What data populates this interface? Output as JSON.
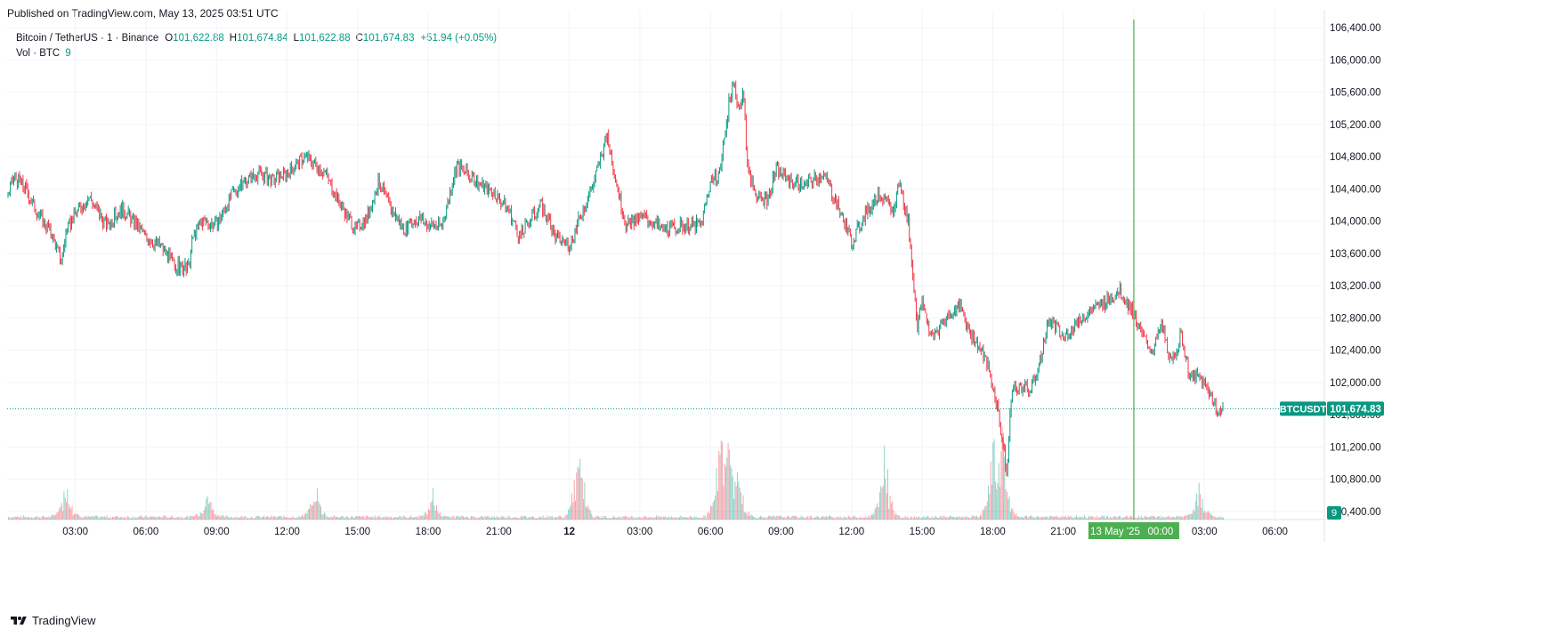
{
  "published": "Published on TradingView.com, May 13, 2025 03:51 UTC",
  "legend": {
    "symbol": "Bitcoin / TetherUS · 1 · Binance",
    "open_label": "O",
    "open": "101,622.88",
    "high_label": "H",
    "high": "101,674.84",
    "low_label": "L",
    "low": "101,622.88",
    "close_label": "C",
    "close": "101,674.83",
    "change": "+51.94 (+0.05%)",
    "vol_label": "Vol · BTC",
    "vol_value": "9"
  },
  "footer": {
    "brand": "TradingView"
  },
  "colors": {
    "up": "#089981",
    "down": "#f23645",
    "crosshair": "#4caf50",
    "grid": "#f0f3fa"
  },
  "chart_data": {
    "type": "line",
    "title": "Bitcoin / TetherUS · 1 · Binance",
    "symbol_tag": "BTCUSDT",
    "last_price": 101674.83,
    "last_price_label": "101,674.83",
    "volume_tag": "9",
    "crosshair_label": {
      "date": "13 May '25",
      "time": "00:00"
    },
    "ylim": [
      100300,
      106500
    ],
    "y_ticks": [
      100400,
      100800,
      101200,
      101600,
      102000,
      102400,
      102800,
      103200,
      103600,
      104000,
      104400,
      104800,
      105200,
      105600,
      106000,
      106400
    ],
    "y_tick_labels": [
      "100,400.00",
      "100,800.00",
      "101,200.00",
      "101,600.00",
      "102,000.00",
      "102,400.00",
      "102,800.00",
      "103,200.00",
      "103,600.00",
      "104,000.00",
      "104,400.00",
      "104,800.00",
      "105,200.00",
      "105,600.00",
      "106,000.00",
      "106,400.00"
    ],
    "x_ticks": [
      "03:00",
      "06:00",
      "09:00",
      "12:00",
      "15:00",
      "18:00",
      "21:00",
      "12",
      "03:00",
      "06:00",
      "09:00",
      "12:00",
      "15:00",
      "18:00",
      "21:00",
      "00:00",
      "03:00",
      "06:00"
    ],
    "x_tick_hours": [
      3,
      6,
      9,
      12,
      15,
      18,
      21,
      24,
      27,
      30,
      33,
      36,
      39,
      42,
      45,
      48,
      51,
      54
    ],
    "x_range_hours": [
      0.1,
      56.1
    ],
    "crosshair_hour": 48,
    "last_bar_hour": 51.8,
    "price_series": {
      "x_hours": [
        0.1,
        0.4,
        0.9,
        1.4,
        2.0,
        2.4,
        2.6,
        3.0,
        3.6,
        4.3,
        5.0,
        5.6,
        6.0,
        6.6,
        7.2,
        7.8,
        8.0,
        8.4,
        9.0,
        9.6,
        10.2,
        10.8,
        11.4,
        12.0,
        12.8,
        13.6,
        14.2,
        14.9,
        15.4,
        15.9,
        16.4,
        17.0,
        17.6,
        18.0,
        18.6,
        19.2,
        20.0,
        20.8,
        21.4,
        21.9,
        22.4,
        22.8,
        23.4,
        24.0,
        24.4,
        24.6,
        25.0,
        25.6,
        26.4,
        27.2,
        28.0,
        29.0,
        29.6,
        30.0,
        30.4,
        30.8,
        31.0,
        31.2,
        31.4,
        31.6,
        32.0,
        32.4,
        32.8,
        33.4,
        34.0,
        34.8,
        35.4,
        35.6,
        36.0,
        36.6,
        37.2,
        37.8,
        38.0,
        38.4,
        38.8,
        39.0,
        39.4,
        40.0,
        40.6,
        41.0,
        41.4,
        41.8,
        42.2,
        42.4,
        42.6,
        42.8,
        43.2,
        43.6,
        44.0,
        44.4,
        45.0,
        45.6,
        46.2,
        46.8,
        47.4,
        48.0,
        48.4,
        48.8,
        49.2,
        49.6,
        50.0,
        50.4,
        50.8,
        51.2,
        51.6,
        51.8
      ],
      "prices": [
        104300,
        104550,
        104400,
        104100,
        103850,
        103500,
        103850,
        104100,
        104300,
        103950,
        104150,
        103950,
        103800,
        103700,
        103450,
        103400,
        103800,
        104000,
        103950,
        104300,
        104500,
        104600,
        104500,
        104600,
        104800,
        104600,
        104250,
        103900,
        104050,
        104500,
        104150,
        103900,
        104050,
        103950,
        103950,
        104700,
        104500,
        104350,
        104150,
        103800,
        104050,
        104200,
        103800,
        103700,
        104000,
        104150,
        104450,
        105050,
        103950,
        104050,
        103900,
        103950,
        103950,
        104500,
        104600,
        105500,
        105700,
        105400,
        105600,
        104600,
        104300,
        104250,
        104650,
        104500,
        104450,
        104600,
        104200,
        104050,
        103750,
        104100,
        104350,
        104100,
        104500,
        104000,
        102700,
        103000,
        102550,
        102800,
        102950,
        102650,
        102450,
        102200,
        101700,
        101300,
        100850,
        101900,
        101950,
        101900,
        102250,
        102800,
        102550,
        102750,
        102900,
        103000,
        103150,
        102850,
        102550,
        102400,
        102700,
        102200,
        102600,
        102050,
        102050,
        101900,
        101600,
        101674.83
      ]
    },
    "volume": {
      "baseline": 0,
      "spikes": [
        {
          "x_hours": 2.6,
          "value": 240
        },
        {
          "x_hours": 24.4,
          "value": 600
        },
        {
          "x_hours": 30.4,
          "value": 520
        },
        {
          "x_hours": 30.8,
          "value": 350
        },
        {
          "x_hours": 31.2,
          "value": 260
        },
        {
          "x_hours": 42.0,
          "value": 400
        },
        {
          "x_hours": 42.4,
          "value": 470
        },
        {
          "x_hours": 37.4,
          "value": 420
        },
        {
          "x_hours": 50.8,
          "value": 220
        },
        {
          "x_hours": 13.2,
          "value": 200
        },
        {
          "x_hours": 8.6,
          "value": 160
        },
        {
          "x_hours": 18.2,
          "value": 130
        }
      ]
    }
  }
}
